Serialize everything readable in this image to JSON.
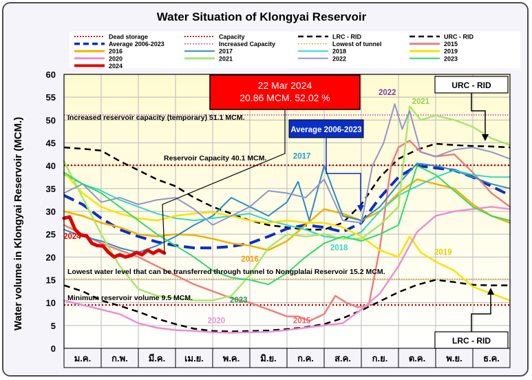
{
  "chart_data": {
    "type": "line",
    "title": "Water Situation of Klongyai Reservoir",
    "ylabel": "Water volume in Klongyai Reservoir (MCM.)",
    "xlabel": "",
    "ylim": [
      0,
      60
    ],
    "yticks": [
      0,
      5,
      10,
      15,
      20,
      25,
      30,
      35,
      40,
      45,
      50,
      55,
      60
    ],
    "xlim": [
      0,
      12
    ],
    "months": [
      "ม.ค.",
      "ก.พ.",
      "มี.ค.",
      "เม.ย.",
      "พ.ค.",
      "มิ.ย.",
      "ก.ค.",
      "ส.ค.",
      "ก.ย.",
      "ต.ค.",
      "พ.ย.",
      "ธ.ค."
    ],
    "grid": true,
    "legend_position": "top",
    "reference_lines": [
      {
        "name": "Dead storage",
        "value": 9.5,
        "color": "#c00000",
        "style": "dotted",
        "label": "Minimum reservoir volume 9.5 MCM."
      },
      {
        "name": "Capacity",
        "value": 40.1,
        "color": "#c00000",
        "style": "dotted",
        "label": "Reservoir Capacity 40.1 MCM."
      },
      {
        "name": "Increased Capacity",
        "value": 51.1,
        "color": "#cc33cc",
        "style": "dotted",
        "label": "Increased reservoir capacity (temporary) 51.1 MCM."
      },
      {
        "name": "Lowest of tunnel",
        "value": 15.2,
        "color": "#ff9900",
        "style": "dotted",
        "label": "Lowest water level that can be transferred through tunnel to Nongplalai Reservoir 15.2 MCM."
      }
    ],
    "series": [
      {
        "name": "LRC - RID",
        "color": "#000000",
        "width": 2.5,
        "dash": "9,6",
        "x": [
          0,
          0.5,
          1,
          1.5,
          2,
          2.5,
          3,
          3.5,
          4,
          4.5,
          5,
          5.5,
          6,
          6.5,
          7,
          7.5,
          8,
          8.5,
          9,
          9.5,
          10,
          10.5,
          11,
          11.5,
          12
        ],
        "y": [
          13.8,
          12.5,
          10.5,
          9.3,
          8.0,
          6.5,
          5.3,
          4.3,
          3.8,
          3.7,
          3.8,
          3.9,
          4.2,
          4.6,
          5.3,
          6.6,
          8.3,
          10.3,
          12.3,
          13.9,
          15.0,
          14.5,
          13.9,
          13.8,
          13.8
        ]
      },
      {
        "name": "URC - RID",
        "color": "#000000",
        "width": 2.5,
        "dash": "9,6",
        "x": [
          0,
          0.5,
          1,
          1.5,
          2,
          2.5,
          3,
          3.5,
          4,
          4.5,
          5,
          5.5,
          6,
          6.5,
          7,
          7.5,
          8,
          8.5,
          9,
          9.5,
          10,
          10.5,
          11,
          11.5,
          12
        ],
        "y": [
          44.0,
          43.7,
          43.3,
          41.0,
          39.0,
          37.0,
          35.5,
          33.0,
          31.0,
          29.5,
          28.0,
          27.0,
          26.5,
          26.0,
          26.0,
          27.5,
          31.5,
          37.5,
          41.5,
          43.5,
          44.8,
          44.5,
          44.3,
          44.2,
          44.0
        ]
      },
      {
        "name": "Average 2006-2023",
        "color": "#0a2fc7",
        "width": 4,
        "dash": "16,8",
        "x": [
          0,
          0.5,
          1,
          1.5,
          2,
          2.5,
          3,
          3.5,
          4,
          4.5,
          5,
          5.5,
          6,
          6.5,
          7,
          7.5,
          8,
          8.5,
          9,
          9.5,
          10,
          10.5,
          11,
          11.5,
          12
        ],
        "y": [
          33.5,
          31.5,
          28.5,
          26.0,
          24.5,
          23.3,
          22.5,
          22.0,
          22.0,
          22.3,
          23.0,
          24.5,
          26.2,
          27.0,
          26.5,
          25.5,
          27.5,
          33.0,
          37.5,
          40.0,
          39.5,
          39.0,
          37.5,
          35.5,
          33.5
        ]
      },
      {
        "name": "2015",
        "color": "#ee7f7f",
        "width": 2.5,
        "x": [
          0,
          0.5,
          1,
          1.5,
          2,
          2.5,
          3,
          3.5,
          4,
          4.5,
          5,
          5.5,
          6,
          6.3,
          6.6,
          7,
          7.3,
          7.6,
          7.9,
          8.2,
          8.5,
          8.8,
          9,
          9.3,
          9.6,
          10,
          10.5,
          11,
          11.5,
          12
        ],
        "y": [
          27.0,
          25.0,
          23.0,
          21.5,
          20.0,
          18.0,
          16.0,
          14.0,
          12.5,
          11.0,
          10.0,
          8.5,
          7.0,
          7.0,
          6.0,
          7.5,
          11.5,
          10.0,
          9.0,
          9.5,
          22.0,
          40.0,
          44.0,
          45.5,
          43.0,
          42.0,
          42.5,
          38.5,
          34.0,
          31.0
        ]
      },
      {
        "name": "2016",
        "color": "#f4b000",
        "width": 2.5,
        "x": [
          0,
          0.5,
          1,
          1.5,
          2,
          2.5,
          3,
          3.5,
          4,
          4.5,
          5,
          5.5,
          6,
          6.5,
          7,
          7.5,
          8,
          8.5,
          9,
          9.5,
          10,
          10.5,
          11,
          11.5,
          12
        ],
        "y": [
          30.0,
          29.0,
          27.5,
          26.5,
          25.0,
          24.5,
          25.0,
          24.8,
          24.0,
          23.0,
          22.5,
          21.5,
          23.5,
          27.0,
          30.5,
          29.5,
          28.0,
          30.0,
          34.0,
          37.0,
          36.0,
          35.0,
          31.5,
          29.0,
          27.5
        ]
      },
      {
        "name": "2017",
        "color": "#2e8bc0",
        "width": 2,
        "x": [
          0,
          0.5,
          1,
          1.5,
          2,
          2.5,
          3,
          3.5,
          4,
          4.5,
          5,
          5.5,
          6,
          6.3,
          6.6,
          7,
          7.5,
          8,
          8.5,
          9,
          9.5,
          10,
          10.5,
          11,
          11.5,
          12
        ],
        "y": [
          26.0,
          24.5,
          23.5,
          22.0,
          21.0,
          22.5,
          24.5,
          27.0,
          29.0,
          33.0,
          31.0,
          29.0,
          32.0,
          36.5,
          28.0,
          40.0,
          29.0,
          28.0,
          31.0,
          36.0,
          40.5,
          40.0,
          39.0,
          37.5,
          36.0,
          35.0
        ]
      },
      {
        "name": "2018",
        "color": "#33d6c8",
        "width": 2,
        "x": [
          0,
          0.5,
          1,
          1.5,
          2,
          2.5,
          3,
          3.5,
          4,
          4.5,
          5,
          5.5,
          6,
          6.5,
          7,
          7.5,
          8,
          8.5,
          9,
          9.5,
          10,
          10.5,
          11,
          11.5,
          12
        ],
        "y": [
          38.0,
          36.0,
          34.5,
          32.5,
          31.0,
          29.5,
          28.5,
          28.0,
          28.5,
          29.0,
          29.5,
          28.0,
          27.0,
          26.0,
          24.5,
          24.0,
          25.5,
          30.0,
          33.5,
          35.5,
          37.5,
          39.0,
          38.0,
          37.5,
          37.5
        ]
      },
      {
        "name": "2019",
        "color": "#ffe000",
        "width": 2.5,
        "x": [
          0,
          0.5,
          1,
          1.5,
          2,
          2.5,
          3,
          3.5,
          4,
          4.5,
          5,
          5.5,
          6,
          6.5,
          7,
          7.5,
          8,
          8.5,
          9,
          9.3,
          9.6,
          10,
          10.5,
          11,
          11.5,
          12
        ],
        "y": [
          38.5,
          34.0,
          31.0,
          29.5,
          28.5,
          28.0,
          29.0,
          29.5,
          29.8,
          29.0,
          28.0,
          27.5,
          28.0,
          27.5,
          27.5,
          26.5,
          24.5,
          21.5,
          20.0,
          24.5,
          21.0,
          19.0,
          17.0,
          13.5,
          12.0,
          10.5
        ]
      },
      {
        "name": "2020",
        "color": "#ee8ed2",
        "width": 2.5,
        "x": [
          0,
          0.5,
          1,
          1.5,
          2,
          2.5,
          3,
          3.5,
          4,
          4.5,
          5,
          5.5,
          6,
          6.5,
          7,
          7.5,
          8,
          8.5,
          9,
          9.5,
          10,
          10.5,
          11,
          11.5,
          12
        ],
        "y": [
          10.5,
          9.5,
          8.5,
          7.5,
          5.5,
          4.5,
          4.0,
          3.8,
          3.5,
          3.4,
          3.5,
          3.6,
          4.0,
          4.5,
          5.0,
          5.5,
          8.5,
          12.0,
          18.0,
          25.5,
          29.0,
          30.0,
          30.5,
          31.0,
          30.5
        ]
      },
      {
        "name": "2021",
        "color": "#a6e86e",
        "width": 2.5,
        "x": [
          0,
          0.5,
          1,
          1.5,
          2,
          2.5,
          3,
          3.5,
          4,
          4.5,
          5,
          5.5,
          6,
          6.5,
          7,
          7.5,
          8,
          8.5,
          9,
          9.3,
          9.6,
          10,
          10.5,
          11,
          11.5,
          12
        ],
        "y": [
          41.0,
          33.0,
          25.0,
          18.0,
          13.0,
          11.5,
          11.0,
          10.5,
          10.5,
          11.5,
          16.0,
          22.0,
          25.0,
          24.5,
          25.0,
          24.0,
          24.0,
          27.0,
          31.0,
          53.0,
          50.0,
          51.0,
          50.0,
          48.5,
          46.0,
          44.5
        ]
      },
      {
        "name": "2022",
        "color": "#8f95ce",
        "width": 2,
        "x": [
          0,
          0.5,
          1,
          1.5,
          2,
          2.5,
          3,
          3.5,
          4,
          4.5,
          5,
          5.5,
          6,
          6.5,
          7,
          7.5,
          8,
          8.3,
          8.6,
          8.9,
          9.1,
          9.3,
          9.6,
          10,
          10.5,
          11,
          11.5,
          12
        ],
        "y": [
          34.0,
          36.0,
          32.0,
          33.0,
          31.5,
          32.5,
          33.0,
          30.5,
          27.0,
          29.0,
          31.0,
          34.5,
          34.0,
          33.0,
          37.0,
          28.0,
          27.5,
          40.0,
          45.0,
          53.5,
          48.0,
          52.0,
          43.0,
          42.0,
          43.5,
          44.0,
          43.0,
          41.5
        ]
      },
      {
        "name": "2023",
        "color": "#2fd86f",
        "width": 2,
        "x": [
          0,
          0.5,
          1,
          1.5,
          2,
          2.5,
          3,
          3.5,
          4,
          4.5,
          5,
          5.5,
          6,
          6.5,
          7,
          7.5,
          8,
          8.5,
          9,
          9.5,
          10,
          10.5,
          11,
          11.5,
          12
        ],
        "y": [
          38.5,
          36.0,
          34.0,
          31.0,
          28.0,
          25.0,
          22.5,
          20.0,
          17.0,
          15.5,
          15.0,
          14.0,
          16.5,
          20.0,
          23.0,
          24.5,
          23.5,
          25.0,
          27.0,
          40.0,
          38.0,
          34.5,
          31.0,
          29.0,
          28.0
        ]
      },
      {
        "name": "2024",
        "color": "#e00000",
        "width": 5,
        "x": [
          0,
          0.15,
          0.3,
          0.45,
          0.6,
          0.75,
          0.9,
          1.05,
          1.2,
          1.35,
          1.5,
          1.65,
          1.8,
          1.95,
          2.1,
          2.25,
          2.4,
          2.55,
          2.7
        ],
        "y": [
          28.5,
          28.8,
          26.0,
          24.8,
          24.7,
          23.0,
          22.5,
          22.4,
          21.0,
          20.0,
          20.5,
          20.0,
          20.3,
          21.0,
          20.5,
          21.5,
          20.8,
          21.5,
          20.86
        ]
      }
    ],
    "legend": [
      {
        "label": "Dead storage",
        "color": "#c00000",
        "style": "dotted",
        "width": 2
      },
      {
        "label": "Capacity",
        "color": "#c00000",
        "style": "dotted",
        "width": 2
      },
      {
        "label": "LRC - RID",
        "color": "#000000",
        "style": "dash",
        "width": 2.5
      },
      {
        "label": "URC - RID",
        "color": "#000000",
        "style": "dash",
        "width": 2.5
      },
      {
        "label": "Average 2006-2023",
        "color": "#0a2fc7",
        "style": "dash",
        "width": 3.5
      },
      {
        "label": "Increased Capacity",
        "color": "#cc33cc",
        "style": "dotted",
        "width": 1.5
      },
      {
        "label": "Lowest of tunnel",
        "color": "#ff9900",
        "style": "dotted",
        "width": 1.5
      },
      {
        "label": "2015",
        "color": "#ee7f7f",
        "style": "solid",
        "width": 3
      },
      {
        "label": "2016",
        "color": "#f4b000",
        "style": "solid",
        "width": 3
      },
      {
        "label": "2017",
        "color": "#2e8bc0",
        "style": "solid",
        "width": 2
      },
      {
        "label": "2018",
        "color": "#33d6c8",
        "style": "solid",
        "width": 2
      },
      {
        "label": "2019",
        "color": "#ffe000",
        "style": "solid",
        "width": 3
      },
      {
        "label": "2020",
        "color": "#ee8ed2",
        "style": "solid",
        "width": 3
      },
      {
        "label": "2021",
        "color": "#a6e86e",
        "style": "solid",
        "width": 3
      },
      {
        "label": "2022",
        "color": "#8f95ce",
        "style": "solid",
        "width": 2
      },
      {
        "label": "2023",
        "color": "#2fd86f",
        "style": "solid",
        "width": 2
      },
      {
        "label": "2024",
        "color": "#e00000",
        "style": "solid",
        "width": 4
      }
    ],
    "series_labels": [
      {
        "text": "2024",
        "color": "#e00000",
        "x": 0.22,
        "y": 24
      },
      {
        "text": "2017",
        "color": "#1aa3c7",
        "x": 6.4,
        "y": 41.5
      },
      {
        "text": "2018",
        "color": "#33d6c8",
        "x": 7.4,
        "y": 21.5
      },
      {
        "text": "2016",
        "color": "#f4a000",
        "x": 5.0,
        "y": 19.0
      },
      {
        "text": "2023",
        "color": "#12a84a",
        "x": 4.7,
        "y": 10.0
      },
      {
        "text": "2020",
        "color": "#ee8ed2",
        "x": 4.1,
        "y": 5.5
      },
      {
        "text": "2015",
        "color": "#ee6060",
        "x": 6.4,
        "y": 5.5
      },
      {
        "text": "2019",
        "color": "#e8cc00",
        "x": 10.2,
        "y": 20.5
      },
      {
        "text": "2021",
        "color": "#8fd44e",
        "x": 9.6,
        "y": 53.5
      },
      {
        "text": "2022",
        "color": "#7a3fa8",
        "x": 8.7,
        "y": 55.5
      }
    ],
    "annotations": {
      "current": {
        "date": "22 Mar 2024",
        "value": "20.86 MCM. 52.02 %",
        "x": 2.7,
        "y": 20.86
      },
      "average_label": "Average 2006-2023",
      "urc_label": "URC - RID",
      "lrc_label": "LRC - RID"
    }
  }
}
